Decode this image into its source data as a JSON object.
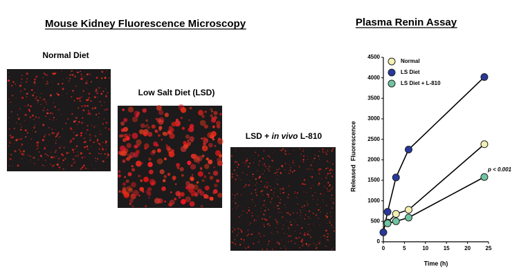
{
  "figure": {
    "title": "Mouse Kidney Fluorescence Microscopy",
    "panels": [
      {
        "label_parts": [
          "Normal Diet"
        ]
      },
      {
        "label_parts": [
          "Low Salt Diet (LSD)"
        ]
      },
      {
        "label_parts": [
          "LSD + ",
          "in vivo",
          " L-810"
        ]
      }
    ]
  },
  "chart_data": {
    "type": "line",
    "title": "Plasma Renin Assay",
    "x_label": "Time (h)",
    "y_label": "Released  Fluorescence",
    "annotation": "p < 0.001",
    "xlim": [
      0,
      25
    ],
    "xticks": [
      0,
      5,
      10,
      15,
      20,
      25
    ],
    "ylim": [
      0,
      4500
    ],
    "yticks": [
      0,
      500,
      1000,
      1500,
      2000,
      2500,
      3000,
      3500,
      4000,
      4500
    ],
    "legend": "upper left",
    "series": [
      {
        "name": "Normal",
        "color": "#f4efb2",
        "x": [
          1,
          3,
          6,
          24
        ],
        "values": [
          470,
          680,
          780,
          2380
        ]
      },
      {
        "name": "LS Diet",
        "color": "#28389c",
        "x": [
          0,
          1,
          3,
          6,
          24
        ],
        "values": [
          230,
          730,
          1570,
          2250,
          4020
        ]
      },
      {
        "name": "LS Diet + L-810",
        "color": "#6fc4a2",
        "x": [
          1,
          3,
          6,
          24
        ],
        "values": [
          450,
          500,
          590,
          1580
        ]
      }
    ]
  }
}
